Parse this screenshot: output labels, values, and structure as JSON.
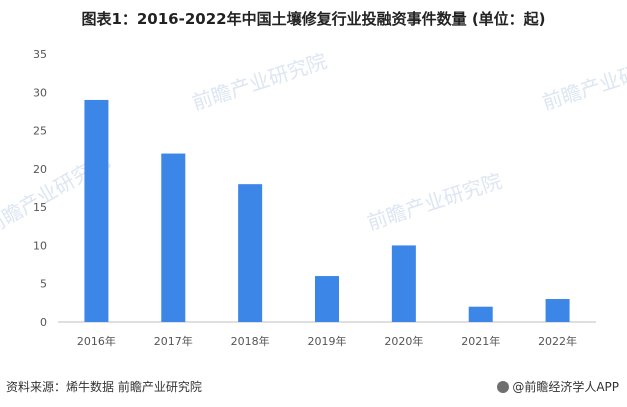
{
  "chart_data": {
    "type": "bar",
    "title": "图表1：2016-2022年中国土壤修复行业投融资事件数量 (单位：起)",
    "categories": [
      "2016年",
      "2017年",
      "2018年",
      "2019年",
      "2020年",
      "2021年",
      "2022年"
    ],
    "values": [
      29,
      22,
      18,
      6,
      10,
      2,
      3
    ],
    "ylim": [
      0,
      35
    ],
    "yticks": [
      0,
      5,
      10,
      15,
      20,
      25,
      30,
      35
    ],
    "xlabel": "",
    "ylabel": "",
    "grid": false,
    "bar_color": "#3b86e6"
  },
  "watermark": {
    "text": "前瞻产业研究院"
  },
  "footer": {
    "source": "资料来源：烯牛数据 前瞻产业研究院",
    "brand": "@前瞻经济学人APP"
  }
}
